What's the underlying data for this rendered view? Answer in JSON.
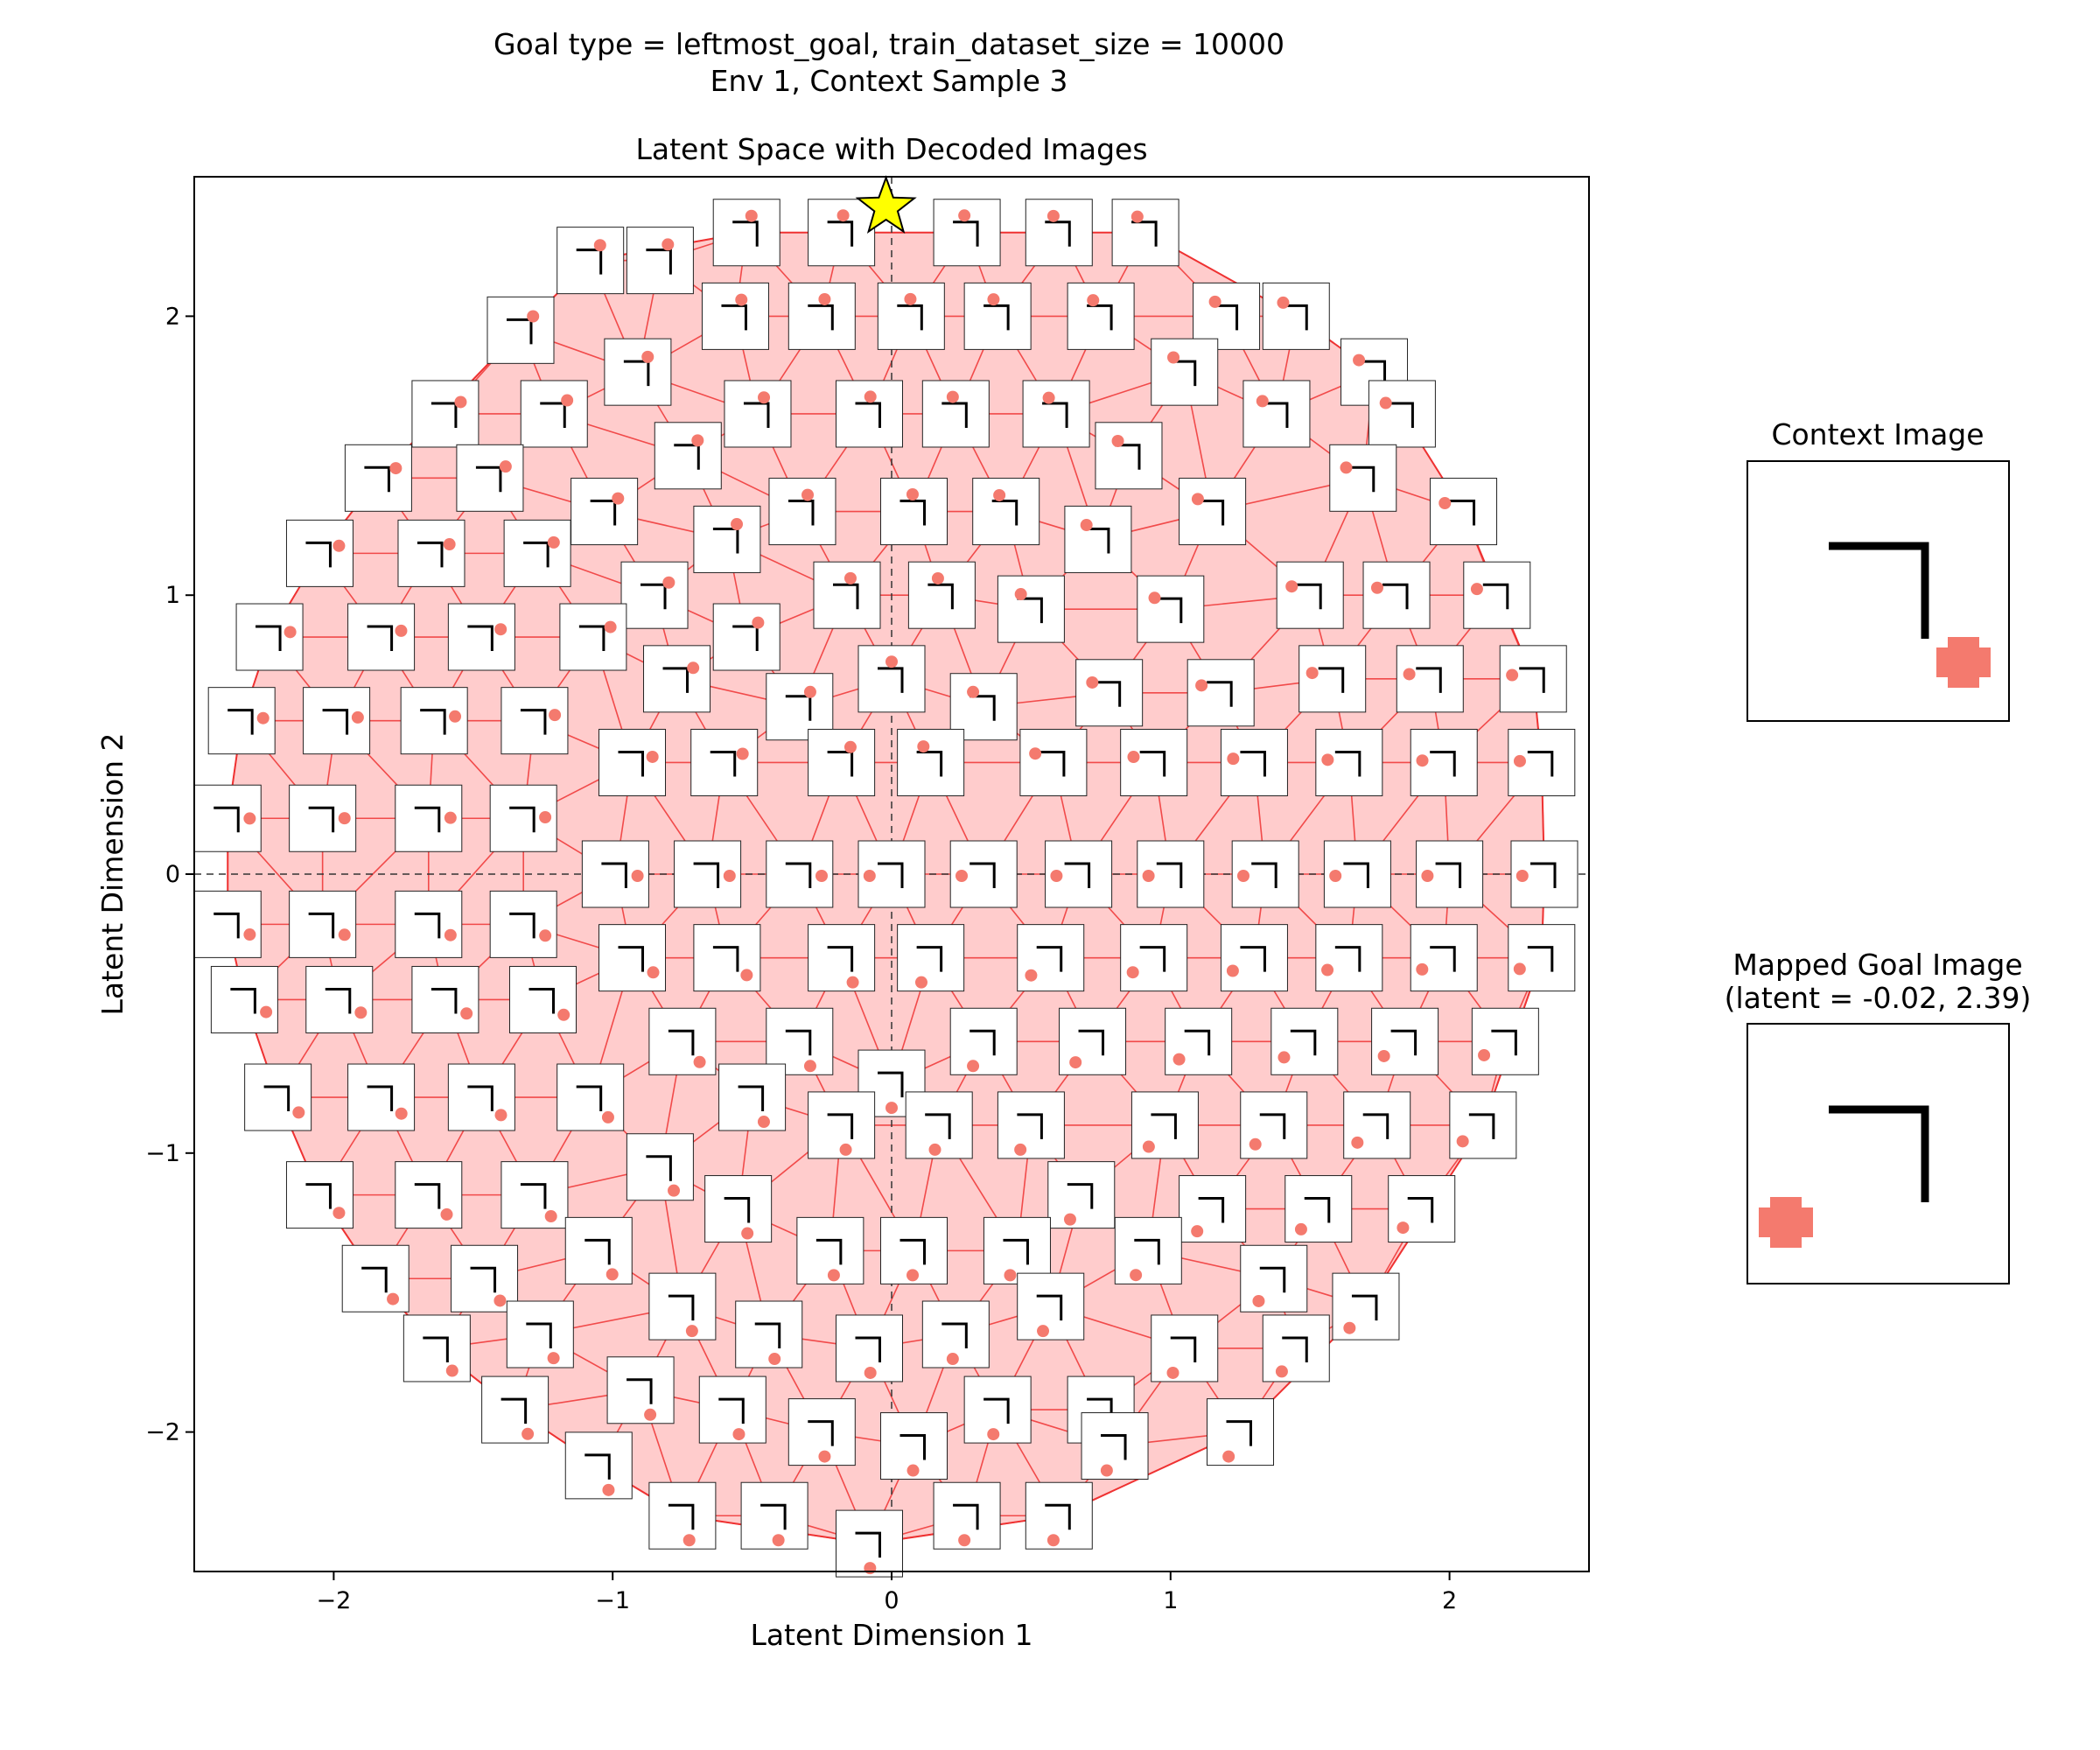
{
  "suptitle": {
    "line1": "Goal type = leftmost_goal, train_dataset_size = 10000",
    "line2": "Env 1, Context Sample 3"
  },
  "chart_data": {
    "type": "scatter",
    "title": "Latent Space with Decoded Images",
    "xlabel": "Latent Dimension 1",
    "ylabel": "Latent Dimension 2",
    "xlim": [
      -2.5,
      2.5
    ],
    "ylim": [
      -2.5,
      2.5
    ],
    "xticks": [
      {
        "value": -2,
        "label": "−2"
      },
      {
        "value": -1,
        "label": "−1"
      },
      {
        "value": 0,
        "label": "0"
      },
      {
        "value": 1,
        "label": "1"
      },
      {
        "value": 2,
        "label": "2"
      }
    ],
    "yticks": [
      {
        "value": -2,
        "label": "−2"
      },
      {
        "value": -1,
        "label": "−1"
      },
      {
        "value": 0,
        "label": "0"
      },
      {
        "value": 1,
        "label": "1"
      },
      {
        "value": 2,
        "label": "2"
      }
    ],
    "reference_lines": {
      "x": 0,
      "y": 0
    },
    "grid": false,
    "colors": {
      "mesh_fill": "#ffcccc",
      "mesh_edge": "#ee3333",
      "dot": "#f47a6e",
      "wall": "#000000",
      "star": "#ffff00"
    },
    "goal_marker": {
      "shape": "star",
      "x": -0.02,
      "y": 2.39
    },
    "decoded_images_rows": [
      {
        "y": 2.3,
        "x": [
          -0.52,
          -0.18,
          0.27,
          0.6,
          0.91
        ]
      },
      {
        "y": 2.2,
        "x": [
          -0.83,
          -1.08
        ]
      },
      {
        "y": 2.0,
        "x": [
          -0.56,
          -0.25,
          0.07,
          0.38,
          0.75,
          1.2,
          1.45
        ]
      },
      {
        "y": 1.95,
        "x": [
          -1.33
        ]
      },
      {
        "y": 1.8,
        "x": [
          -0.91,
          1.05,
          1.73
        ]
      },
      {
        "y": 1.65,
        "x": [
          -1.6,
          -1.21,
          -0.48,
          -0.08,
          0.23,
          0.59,
          1.38,
          1.83
        ]
      },
      {
        "y": 1.5,
        "x": [
          -0.73,
          0.85
        ]
      },
      {
        "y": 1.42,
        "x": [
          -1.84,
          -1.44,
          1.69
        ]
      },
      {
        "y": 1.3,
        "x": [
          -1.03,
          -0.32,
          0.08,
          0.41,
          1.15,
          2.05
        ]
      },
      {
        "y": 1.2,
        "x": [
          -0.59,
          0.74
        ]
      },
      {
        "y": 1.15,
        "x": [
          -2.05,
          -1.65,
          -1.27
        ]
      },
      {
        "y": 1.0,
        "x": [
          -0.85,
          -0.16,
          0.18,
          1.5,
          1.81,
          2.17
        ]
      },
      {
        "y": 0.95,
        "x": [
          0.5,
          1.0
        ]
      },
      {
        "y": 0.85,
        "x": [
          -2.23,
          -1.83,
          -1.47,
          -1.07,
          -0.52
        ]
      },
      {
        "y": 0.7,
        "x": [
          -0.77,
          0.0,
          1.58,
          1.93,
          2.3
        ]
      },
      {
        "y": 0.65,
        "x": [
          0.78,
          1.18
        ]
      },
      {
        "y": 0.6,
        "x": [
          -0.33,
          0.33
        ]
      },
      {
        "y": 0.55,
        "x": [
          -2.33,
          -1.99,
          -1.64,
          -1.28
        ]
      },
      {
        "y": 0.4,
        "x": [
          -0.93,
          -0.6,
          -0.18,
          0.14,
          0.58,
          0.94,
          1.3,
          1.64,
          1.98,
          2.33
        ]
      },
      {
        "y": 0.2,
        "x": [
          -2.38,
          -2.04,
          -1.66,
          -1.32
        ]
      },
      {
        "y": 0.0,
        "x": [
          -0.99,
          -0.66,
          -0.33,
          0.0,
          0.33,
          0.67,
          1.0,
          1.34,
          1.67,
          2.0,
          2.34
        ]
      },
      {
        "y": -0.18,
        "x": [
          -2.38,
          -2.04,
          -1.66,
          -1.32
        ]
      },
      {
        "y": -0.3,
        "x": [
          -0.93,
          -0.59,
          -0.18,
          0.14,
          0.57,
          0.94,
          1.3,
          1.64,
          1.98,
          2.33
        ]
      },
      {
        "y": -0.45,
        "x": [
          -2.32,
          -1.98,
          -1.6,
          -1.25
        ]
      },
      {
        "y": -0.6,
        "x": [
          -0.75,
          -0.33,
          0.33,
          0.72,
          1.1,
          1.48,
          1.84,
          2.2
        ]
      },
      {
        "y": -0.75,
        "x": [
          0.0
        ]
      },
      {
        "y": -0.8,
        "x": [
          -2.2,
          -1.83,
          -1.47,
          -1.08,
          -0.5
        ]
      },
      {
        "y": -0.9,
        "x": [
          -0.18,
          0.17,
          0.5,
          0.98,
          1.37,
          1.74,
          2.12
        ]
      },
      {
        "y": -1.05,
        "x": [
          -0.83
        ]
      },
      {
        "y": -1.15,
        "x": [
          -2.05,
          -1.66,
          -1.28,
          0.68
        ]
      },
      {
        "y": -1.2,
        "x": [
          -0.55,
          1.15,
          1.53,
          1.9
        ]
      },
      {
        "y": -1.35,
        "x": [
          -1.05,
          -0.22,
          0.08,
          0.45,
          0.92
        ]
      },
      {
        "y": -1.45,
        "x": [
          -1.85,
          -1.46,
          1.37
        ]
      },
      {
        "y": -1.55,
        "x": [
          -0.75,
          0.57,
          1.7
        ]
      },
      {
        "y": -1.65,
        "x": [
          -1.26,
          -0.44,
          0.23
        ]
      },
      {
        "y": -1.7,
        "x": [
          -1.63,
          -0.08,
          1.05,
          1.45
        ]
      },
      {
        "y": -1.85,
        "x": [
          -0.9
        ]
      },
      {
        "y": -1.92,
        "x": [
          -1.35,
          -0.57,
          0.38,
          0.75
        ]
      },
      {
        "y": -2.0,
        "x": [
          -0.25,
          1.25
        ]
      },
      {
        "y": -2.05,
        "x": [
          0.08,
          0.8
        ]
      },
      {
        "y": -2.12,
        "x": [
          -1.05
        ]
      },
      {
        "y": -2.3,
        "x": [
          -0.75,
          -0.42,
          0.6,
          0.27
        ]
      },
      {
        "y": -2.4,
        "x": [
          -0.08
        ]
      }
    ]
  },
  "context_panel": {
    "title": "Context Image"
  },
  "goal_panel": {
    "title_line1": "Mapped Goal Image",
    "title_line2": "(latent = -0.02, 2.39)"
  }
}
